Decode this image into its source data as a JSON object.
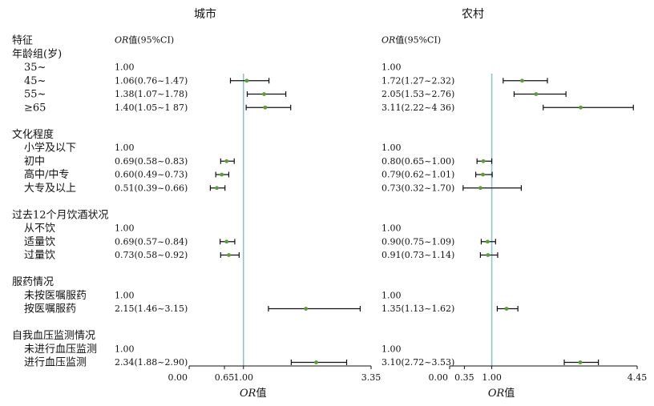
{
  "chart_data": [
    {
      "type": "forest",
      "title": "城市",
      "or_header": {
        "or": "OR",
        "rest": "值(95%CI)"
      },
      "xlabel": {
        "or": "OR",
        "rest": "值"
      },
      "xlim": [
        0,
        3.35
      ],
      "ref_line": 1.0,
      "ticks": [
        "0.00",
        "0.65",
        "1.00",
        "3.35"
      ],
      "tick_values": [
        0,
        0.65,
        1.0,
        3.35
      ],
      "rows": [
        {
          "est": null,
          "lo": null,
          "hi": null,
          "text": ""
        },
        {
          "est": null,
          "lo": null,
          "hi": null,
          "text": ""
        },
        {
          "est": 1.0,
          "lo": null,
          "hi": null,
          "text": "1.00"
        },
        {
          "est": 1.06,
          "lo": 0.76,
          "hi": 1.47,
          "text": "1.06(0.76~1.47)"
        },
        {
          "est": 1.38,
          "lo": 1.07,
          "hi": 1.78,
          "text": "1.38(1.07~1.78)"
        },
        {
          "est": 1.4,
          "lo": 1.05,
          "hi": 1.87,
          "text": "1.40(1.05~1 87)"
        },
        {
          "est": null,
          "lo": null,
          "hi": null,
          "text": ""
        },
        {
          "est": null,
          "lo": null,
          "hi": null,
          "text": ""
        },
        {
          "est": 1.0,
          "lo": null,
          "hi": null,
          "text": "1.00"
        },
        {
          "est": 0.69,
          "lo": 0.58,
          "hi": 0.83,
          "text": "0.69(0.58~0.83)"
        },
        {
          "est": 0.6,
          "lo": 0.49,
          "hi": 0.73,
          "text": "0.60(0.49~0.73)"
        },
        {
          "est": 0.51,
          "lo": 0.39,
          "hi": 0.66,
          "text": "0.51(0.39~0.66)"
        },
        {
          "est": null,
          "lo": null,
          "hi": null,
          "text": ""
        },
        {
          "est": null,
          "lo": null,
          "hi": null,
          "text": ""
        },
        {
          "est": 1.0,
          "lo": null,
          "hi": null,
          "text": "1.00"
        },
        {
          "est": 0.69,
          "lo": 0.57,
          "hi": 0.84,
          "text": "0.69(0.57~0.84)"
        },
        {
          "est": 0.73,
          "lo": 0.58,
          "hi": 0.92,
          "text": "0.73(0.58~0.92)"
        },
        {
          "est": null,
          "lo": null,
          "hi": null,
          "text": ""
        },
        {
          "est": null,
          "lo": null,
          "hi": null,
          "text": ""
        },
        {
          "est": 1.0,
          "lo": null,
          "hi": null,
          "text": "1.00"
        },
        {
          "est": 2.15,
          "lo": 1.46,
          "hi": 3.15,
          "text": "2.15(1.46~3.15)"
        },
        {
          "est": null,
          "lo": null,
          "hi": null,
          "text": ""
        },
        {
          "est": null,
          "lo": null,
          "hi": null,
          "text": ""
        },
        {
          "est": 1.0,
          "lo": null,
          "hi": null,
          "text": "1.00"
        },
        {
          "est": 2.34,
          "lo": 1.88,
          "hi": 2.9,
          "text": "2.34(1.88~2.90)"
        }
      ]
    },
    {
      "type": "forest",
      "title": "农村",
      "or_header": {
        "or": "OR",
        "rest": "值(95%CI)"
      },
      "xlabel": {
        "or": "OR",
        "rest": "值"
      },
      "xlim": [
        0,
        4.45
      ],
      "ref_line": 1.0,
      "ticks": [
        "0.00",
        "0.35",
        "1.00",
        "4.45"
      ],
      "tick_values": [
        0,
        0.35,
        1.0,
        4.45
      ],
      "rows": [
        {
          "est": null,
          "lo": null,
          "hi": null,
          "text": ""
        },
        {
          "est": null,
          "lo": null,
          "hi": null,
          "text": ""
        },
        {
          "est": 1.0,
          "lo": null,
          "hi": null,
          "text": "1.00"
        },
        {
          "est": 1.72,
          "lo": 1.27,
          "hi": 2.32,
          "text": "1.72(1.27~2.32)"
        },
        {
          "est": 2.05,
          "lo": 1.53,
          "hi": 2.76,
          "text": "2.05(1.53~2.76)"
        },
        {
          "est": 3.11,
          "lo": 2.22,
          "hi": 4.36,
          "text": "3.11(2.22~4 36)"
        },
        {
          "est": null,
          "lo": null,
          "hi": null,
          "text": ""
        },
        {
          "est": null,
          "lo": null,
          "hi": null,
          "text": ""
        },
        {
          "est": 1.0,
          "lo": null,
          "hi": null,
          "text": "1.00"
        },
        {
          "est": 0.8,
          "lo": 0.65,
          "hi": 1.0,
          "text": "0.80(0.65~1.00)"
        },
        {
          "est": 0.79,
          "lo": 0.62,
          "hi": 1.01,
          "text": "0.79(0.62~1.01)"
        },
        {
          "est": 0.73,
          "lo": 0.32,
          "hi": 1.7,
          "text": "0.73(0.32~1.70)"
        },
        {
          "est": null,
          "lo": null,
          "hi": null,
          "text": ""
        },
        {
          "est": null,
          "lo": null,
          "hi": null,
          "text": ""
        },
        {
          "est": 1.0,
          "lo": null,
          "hi": null,
          "text": "1.00"
        },
        {
          "est": 0.9,
          "lo": 0.75,
          "hi": 1.09,
          "text": "0.90(0.75~1.09)"
        },
        {
          "est": 0.91,
          "lo": 0.73,
          "hi": 1.14,
          "text": "0.91(0.73~1.14)"
        },
        {
          "est": null,
          "lo": null,
          "hi": null,
          "text": ""
        },
        {
          "est": null,
          "lo": null,
          "hi": null,
          "text": ""
        },
        {
          "est": 1.0,
          "lo": null,
          "hi": null,
          "text": "1.00"
        },
        {
          "est": 1.35,
          "lo": 1.13,
          "hi": 1.62,
          "text": "1.35(1.13~1.62)"
        },
        {
          "est": null,
          "lo": null,
          "hi": null,
          "text": ""
        },
        {
          "est": null,
          "lo": null,
          "hi": null,
          "text": ""
        },
        {
          "est": 1.0,
          "lo": null,
          "hi": null,
          "text": "1.00"
        },
        {
          "est": 3.1,
          "lo": 2.72,
          "hi": 3.53,
          "text": "3.10(2.72~3.53)"
        }
      ]
    }
  ],
  "row_labels": [
    {
      "text": "特征",
      "kind": "header"
    },
    {
      "text": "年龄组(岁)",
      "kind": "group"
    },
    {
      "text": "35~",
      "kind": "item"
    },
    {
      "text": "45~",
      "kind": "item"
    },
    {
      "text": "55~",
      "kind": "item"
    },
    {
      "text": "≥65",
      "kind": "item"
    },
    {
      "text": "",
      "kind": "blank"
    },
    {
      "text": "文化程度",
      "kind": "group"
    },
    {
      "text": "小学及以下",
      "kind": "item"
    },
    {
      "text": "初中",
      "kind": "item"
    },
    {
      "text": "高中/中专",
      "kind": "item"
    },
    {
      "text": "大专及以上",
      "kind": "item"
    },
    {
      "text": "",
      "kind": "blank"
    },
    {
      "text": "过去12个月饮酒状况",
      "kind": "group"
    },
    {
      "text": "从不饮",
      "kind": "item"
    },
    {
      "text": "适量饮",
      "kind": "item"
    },
    {
      "text": "过量饮",
      "kind": "item"
    },
    {
      "text": "",
      "kind": "blank"
    },
    {
      "text": "服药情况",
      "kind": "group"
    },
    {
      "text": "未按医嘱服药",
      "kind": "item"
    },
    {
      "text": "按医嘱服药",
      "kind": "item"
    },
    {
      "text": "",
      "kind": "blank"
    },
    {
      "text": "自我血压监测情况",
      "kind": "group"
    },
    {
      "text": "未进行血压监测",
      "kind": "item"
    },
    {
      "text": "进行血压监测",
      "kind": "item"
    }
  ],
  "colors": {
    "ref_line": "#8fc3cf",
    "ci_line": "#111111",
    "point": "#5a9e3a",
    "axis": "#111111"
  }
}
